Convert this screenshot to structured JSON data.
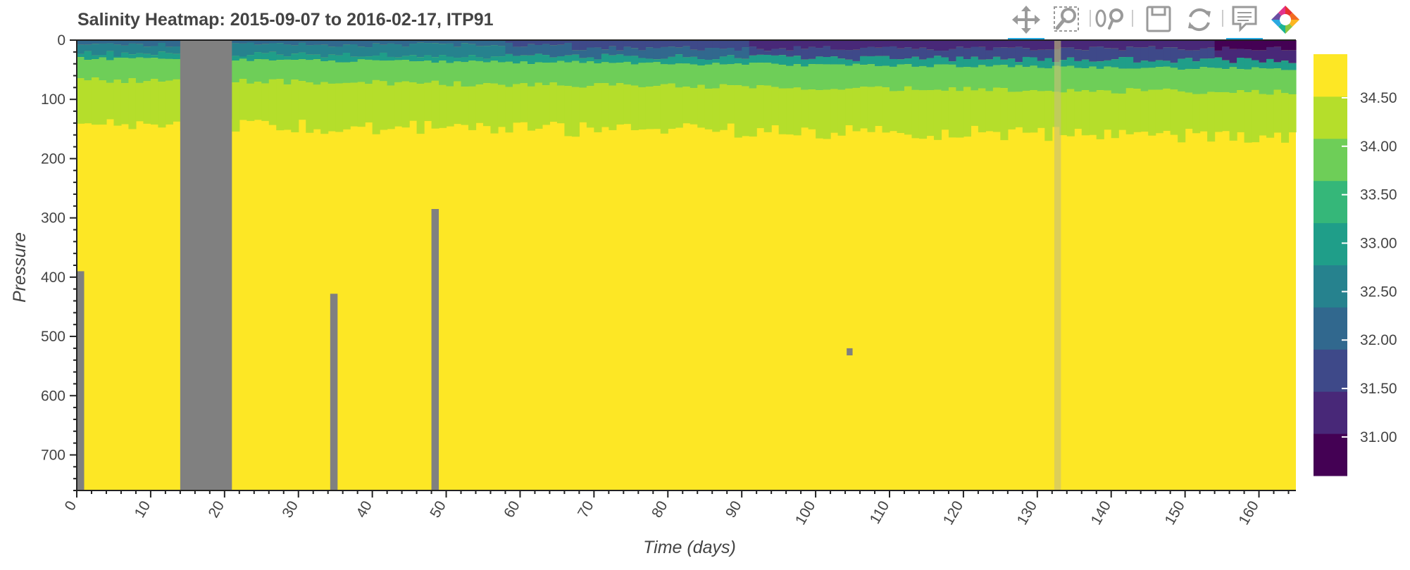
{
  "chart_data": {
    "type": "heatmap",
    "title": "Salinity Heatmap: 2015-09-07 to 2016-02-17, ITP91",
    "xlabel": "Time (days)",
    "ylabel": "Pressure",
    "xlim": [
      0,
      165
    ],
    "ylim": [
      760,
      0
    ],
    "x_ticks": [
      0,
      10,
      20,
      30,
      40,
      50,
      60,
      70,
      80,
      90,
      100,
      110,
      120,
      130,
      140,
      150,
      160
    ],
    "y_ticks": [
      0,
      100,
      200,
      300,
      400,
      500,
      600,
      700
    ],
    "colorbar": {
      "colors": [
        "#440154",
        "#482878",
        "#3e4989",
        "#31688e",
        "#26828e",
        "#1f9e89",
        "#35b779",
        "#6ece58",
        "#b5de2b",
        "#fde725"
      ],
      "tick_labels": [
        "31.00",
        "31.50",
        "32.00",
        "32.50",
        "33.00",
        "33.50",
        "34.00",
        "34.50"
      ],
      "range": [
        30.6,
        34.95
      ]
    },
    "nodata_color": "#808080",
    "surface_layers_approx": [
      {
        "salinity_band": "31.0–32.0",
        "pressure_range": [
          0,
          10
        ]
      },
      {
        "salinity_band": "32.0–33.0",
        "pressure_range": [
          10,
          30
        ]
      },
      {
        "salinity_band": "33.0–34.0",
        "pressure_range": [
          30,
          70
        ]
      },
      {
        "salinity_band": "34.0–34.5",
        "pressure_range": [
          70,
          150
        ]
      },
      {
        "salinity_band": ">34.5",
        "pressure_range": [
          150,
          760
        ]
      }
    ],
    "missing_data_columns": [
      {
        "day_start": 0,
        "day_end": 1,
        "pressure_from": 390
      },
      {
        "day_start": 14,
        "day_end": 21,
        "pressure_from": 0
      },
      {
        "day_start": 34.3,
        "day_end": 35.3,
        "pressure_from": 428
      },
      {
        "day_start": 48,
        "day_end": 49,
        "pressure_from": 285
      }
    ]
  },
  "toolbar": {
    "tools": [
      {
        "name": "pan-tool-icon",
        "active": true
      },
      {
        "name": "box-zoom-tool-icon",
        "active": false
      },
      {
        "name": "wheel-zoom-tool-icon",
        "active": false
      },
      {
        "name": "save-tool-icon",
        "active": false
      },
      {
        "name": "reset-tool-icon",
        "active": false
      },
      {
        "name": "hover-tool-icon",
        "active": true
      },
      {
        "name": "bokeh-logo-icon",
        "active": false
      }
    ]
  }
}
